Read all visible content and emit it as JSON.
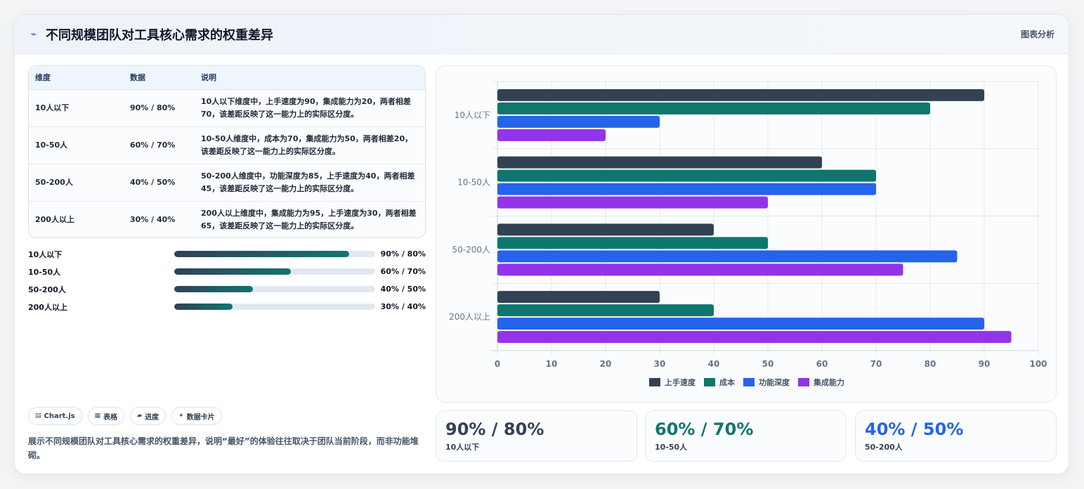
{
  "header": {
    "icon": "sparkline-icon",
    "title": "不同规模团队对工具核心需求的权重差异",
    "link": "图表分析"
  },
  "table": {
    "headers": [
      "维度",
      "数据",
      "说明"
    ],
    "rows": [
      {
        "dim": "10人以下",
        "data": "90% / 80%",
        "desc": "10人以下维度中，上手速度为90，集成能力为20，两者相差70，该差距反映了这一能力上的实际区分度。"
      },
      {
        "dim": "10-50人",
        "data": "60% / 70%",
        "desc": "10-50人维度中，成本为70，集成能力为50，两者相差20，该差距反映了这一能力上的实际区分度。"
      },
      {
        "dim": "50-200人",
        "data": "40% / 50%",
        "desc": "50-200人维度中，功能深度为85，上手速度为40，两者相差45，该差距反映了这一能力上的实际区分度。"
      },
      {
        "dim": "200人以上",
        "data": "30% / 40%",
        "desc": "200人以上维度中，集成能力为95，上手速度为30，两者相差65，该差距反映了这一能力上的实际区分度。"
      }
    ]
  },
  "progress": [
    {
      "label": "10人以下",
      "value": "90% / 80%",
      "fill": 0.87
    },
    {
      "label": "10-50人",
      "value": "60% / 70%",
      "fill": 0.58
    },
    {
      "label": "50-200人",
      "value": "40% / 50%",
      "fill": 0.39
    },
    {
      "label": "200人以上",
      "value": "30% / 40%",
      "fill": 0.29
    }
  ],
  "pills": [
    {
      "icon": "chart-icon",
      "glyph": "▤",
      "label": "Chart.js"
    },
    {
      "icon": "table-icon",
      "glyph": "▦",
      "label": "表格"
    },
    {
      "icon": "progress-icon",
      "glyph": "▰",
      "label": "进度"
    },
    {
      "icon": "card-icon",
      "glyph": "✦",
      "label": "数据卡片"
    }
  ],
  "footer_text": "展示不同规模团队对工具核心需求的权重差异，说明“最好”的体验往往取决于团队当前阶段，而非功能堆砌。",
  "stats": [
    {
      "value": "90% / 80%",
      "label": "10人以下",
      "color": "#334155"
    },
    {
      "value": "60% / 70%",
      "label": "10-50人",
      "color": "#0f766e"
    },
    {
      "value": "40% / 50%",
      "label": "50-200人",
      "color": "#2563eb"
    }
  ],
  "chart_data": {
    "type": "bar",
    "orientation": "horizontal",
    "categories": [
      "10人以下",
      "10-50人",
      "50-200人",
      "200人以上"
    ],
    "series": [
      {
        "name": "上手速度",
        "color": "#334155",
        "values": [
          90,
          60,
          40,
          30
        ]
      },
      {
        "name": "成本",
        "color": "#0f766e",
        "values": [
          80,
          70,
          50,
          40
        ]
      },
      {
        "name": "功能深度",
        "color": "#2563eb",
        "values": [
          30,
          70,
          85,
          90
        ]
      },
      {
        "name": "集成能力",
        "color": "#9333ea",
        "values": [
          20,
          50,
          75,
          95
        ]
      }
    ],
    "xlim": [
      0,
      100
    ],
    "xticks": [
      0,
      10,
      20,
      30,
      40,
      50,
      60,
      70,
      80,
      90,
      100
    ],
    "grid": true,
    "legend": "bottom"
  }
}
